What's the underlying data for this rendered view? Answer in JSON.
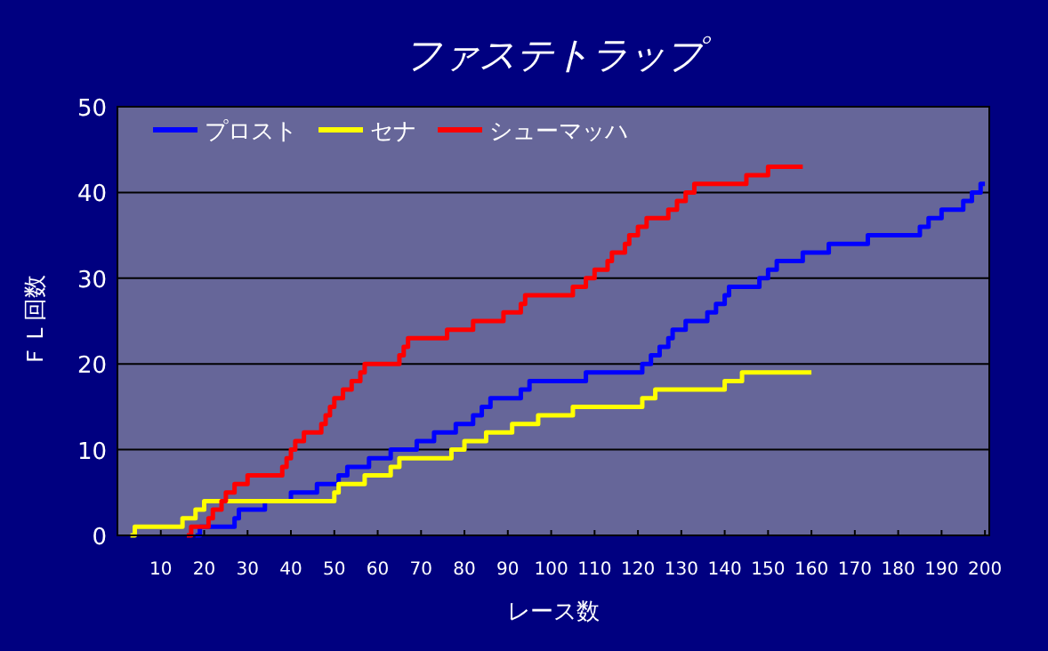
{
  "chart_data": {
    "type": "step",
    "title": "ファステトラップ",
    "xlabel": "レース数",
    "ylabel": "ＦＬ回数",
    "xlim": [
      0,
      201
    ],
    "xticks": [
      10,
      20,
      30,
      40,
      50,
      60,
      70,
      80,
      90,
      100,
      110,
      120,
      130,
      140,
      150,
      160,
      170,
      180,
      190,
      200
    ],
    "ylim": [
      0,
      50
    ],
    "yticks": [
      0,
      10,
      20,
      30,
      40,
      50
    ],
    "grid": "y",
    "legend": "top left",
    "series": [
      {
        "name": "プロスト",
        "color": "#0000ff",
        "x": [
          18,
          19,
          27,
          28,
          34,
          40,
          46,
          51,
          53,
          58,
          63,
          69,
          73,
          78,
          82,
          84,
          86,
          93,
          95,
          108,
          121,
          123,
          125,
          127,
          128,
          131,
          136,
          138,
          140,
          141,
          148,
          150,
          152,
          158,
          164,
          173,
          185,
          187,
          190,
          195,
          197,
          199,
          200
        ],
        "values": [
          0,
          1,
          2,
          3,
          4,
          5,
          6,
          7,
          8,
          9,
          10,
          11,
          12,
          13,
          14,
          15,
          16,
          17,
          18,
          19,
          20,
          21,
          22,
          23,
          24,
          25,
          26,
          27,
          28,
          29,
          30,
          31,
          32,
          33,
          34,
          35,
          36,
          37,
          38,
          39,
          40,
          41,
          41
        ]
      },
      {
        "name": "セナ",
        "color": "#ffff00",
        "x": [
          3,
          4,
          15,
          18,
          20,
          50,
          51,
          57,
          63,
          65,
          77,
          80,
          85,
          91,
          97,
          105,
          121,
          124,
          140,
          144,
          160
        ],
        "values": [
          0,
          1,
          2,
          3,
          4,
          5,
          6,
          7,
          8,
          9,
          10,
          11,
          12,
          13,
          14,
          15,
          16,
          17,
          18,
          19,
          19
        ]
      },
      {
        "name": "シューマッハ",
        "color": "#ff0000",
        "x": [
          16,
          17,
          21,
          22,
          24,
          25,
          27,
          30,
          38,
          39,
          40,
          41,
          43,
          47,
          48,
          49,
          50,
          52,
          54,
          56,
          57,
          65,
          66,
          67,
          76,
          82,
          89,
          93,
          94,
          105,
          108,
          110,
          113,
          114,
          117,
          118,
          120,
          122,
          127,
          129,
          131,
          133,
          145,
          150,
          158
        ],
        "values": [
          0,
          1,
          2,
          3,
          4,
          5,
          6,
          7,
          8,
          9,
          10,
          11,
          12,
          13,
          14,
          15,
          16,
          17,
          18,
          19,
          20,
          21,
          22,
          23,
          24,
          25,
          26,
          27,
          28,
          29,
          30,
          31,
          32,
          33,
          34,
          35,
          36,
          37,
          38,
          39,
          40,
          41,
          42,
          43,
          43
        ]
      }
    ]
  }
}
